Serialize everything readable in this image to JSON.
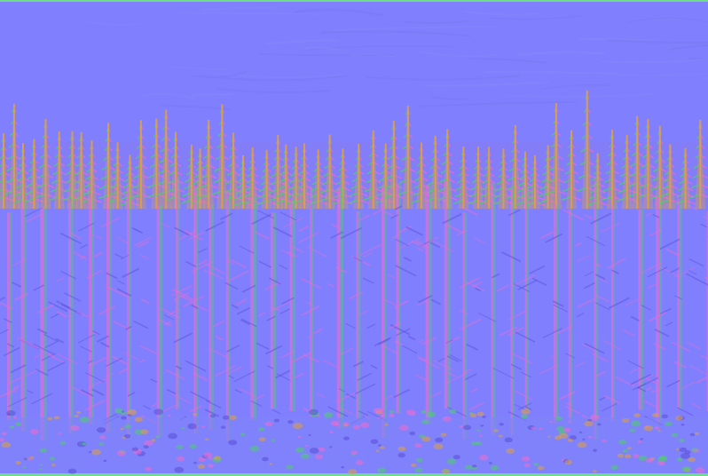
{
  "image": {
    "kind": "normal-map-texture",
    "subject": "forest treeline",
    "colors": {
      "flat_normal": "#8080ff",
      "sky_tint": "#8585fa",
      "ground_tint": "#7e84f6",
      "highlight_pink": "#f06bd0",
      "highlight_green": "#4fd06a",
      "highlight_orange": "#e0a040",
      "shadow_purple": "#5a4fd8",
      "edge_green": "#6fdc8c"
    }
  }
}
